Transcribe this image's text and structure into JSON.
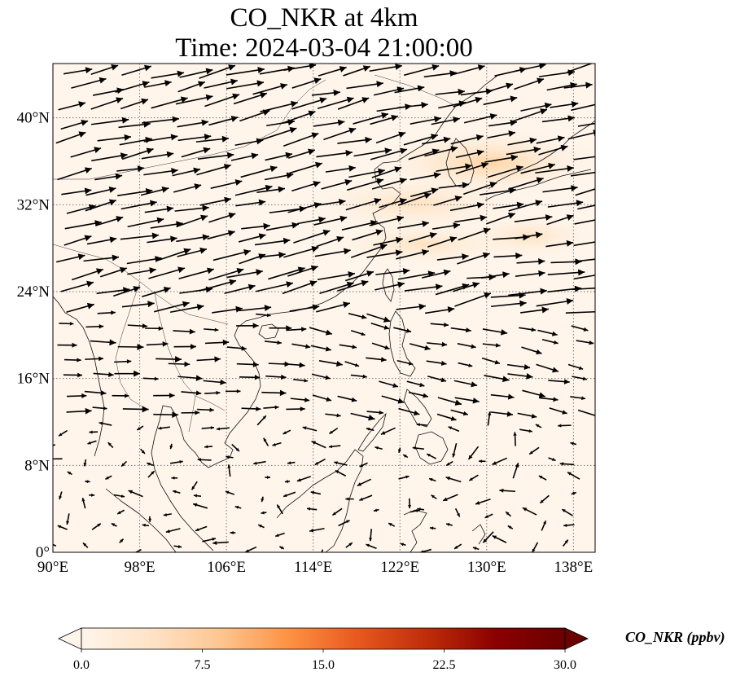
{
  "title": {
    "line1": "CO_NKR at 4km",
    "line2": "Time: 2024-03-04 21:00:00"
  },
  "map": {
    "lon_range": [
      90,
      140
    ],
    "lat_range": [
      0,
      45
    ],
    "x_ticks": [
      {
        "value": 90,
        "label": "90°E"
      },
      {
        "value": 98,
        "label": "98°E"
      },
      {
        "value": 106,
        "label": "106°E"
      },
      {
        "value": 114,
        "label": "114°E"
      },
      {
        "value": 122,
        "label": "122°E"
      },
      {
        "value": 130,
        "label": "130°E"
      },
      {
        "value": 138,
        "label": "138°E"
      }
    ],
    "y_ticks": [
      {
        "value": 0,
        "label": "0°"
      },
      {
        "value": 8,
        "label": "8°N"
      },
      {
        "value": 16,
        "label": "16°N"
      },
      {
        "value": 24,
        "label": "24°N"
      },
      {
        "value": 32,
        "label": "32°N"
      },
      {
        "value": 40,
        "label": "40°N"
      }
    ],
    "gridlines": true,
    "field_color_low": "#fff5eb",
    "field_color_high": "#fdd8a9"
  },
  "colorbar": {
    "label": "CO_NKR (ppbv)",
    "min": 0,
    "max": 30,
    "ticks": [
      {
        "value": 0,
        "label": "0.0"
      },
      {
        "value": 7.5,
        "label": "7.5"
      },
      {
        "value": 15,
        "label": "15.0"
      },
      {
        "value": 22.5,
        "label": "22.5"
      },
      {
        "value": 30,
        "label": "30.0"
      }
    ],
    "colors": [
      "#fff5eb",
      "#fee3c8",
      "#fdc692",
      "#fd9243",
      "#e8581f",
      "#be2d0a",
      "#8b0000",
      "#6b0000"
    ],
    "extend": "both"
  }
}
